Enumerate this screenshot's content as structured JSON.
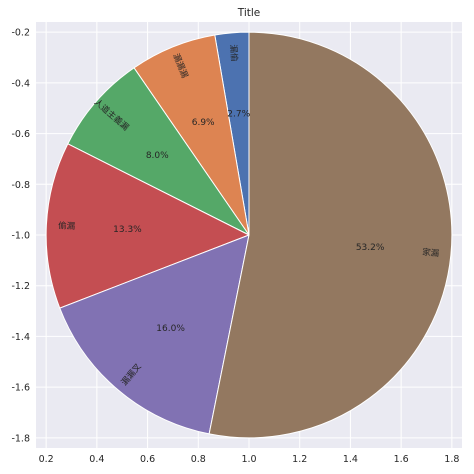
{
  "chart_data": {
    "type": "pie",
    "title": "Title",
    "x_ticks": [
      "0.2",
      "0.4",
      "0.6",
      "0.8",
      "1.0",
      "1.2",
      "1.4",
      "1.6",
      "1.8"
    ],
    "y_ticks": [
      "-0.2",
      "-0.4",
      "-0.6",
      "-0.8",
      "-1.0",
      "-1.2",
      "-1.4",
      "-1.6",
      "-1.8"
    ],
    "xlim": [
      0.16,
      1.84
    ],
    "ylim": [
      -1.84,
      -0.16
    ],
    "center": [
      1.0,
      -1.0
    ],
    "radius": 0.8,
    "start_angle_deg": 90,
    "direction": "counterclockwise",
    "grid": true,
    "slices": [
      {
        "label": "漏偷",
        "value": 2.7,
        "pct_label": "2.7%",
        "color": "#4c72b0"
      },
      {
        "label": "漏漏漏",
        "value": 6.9,
        "pct_label": "6.9%",
        "color": "#dd8452"
      },
      {
        "label": "人道主義漏",
        "value": 8.0,
        "pct_label": "8.0%",
        "color": "#55a868"
      },
      {
        "label": "偷漏",
        "value": 13.3,
        "pct_label": "13.3%",
        "color": "#c44e52"
      },
      {
        "label": "漏漏叉",
        "value": 16.0,
        "pct_label": "16.0%",
        "color": "#8172b3"
      },
      {
        "label": "家漏",
        "value": 53.2,
        "pct_label": "53.2%",
        "color": "#937860"
      }
    ]
  }
}
